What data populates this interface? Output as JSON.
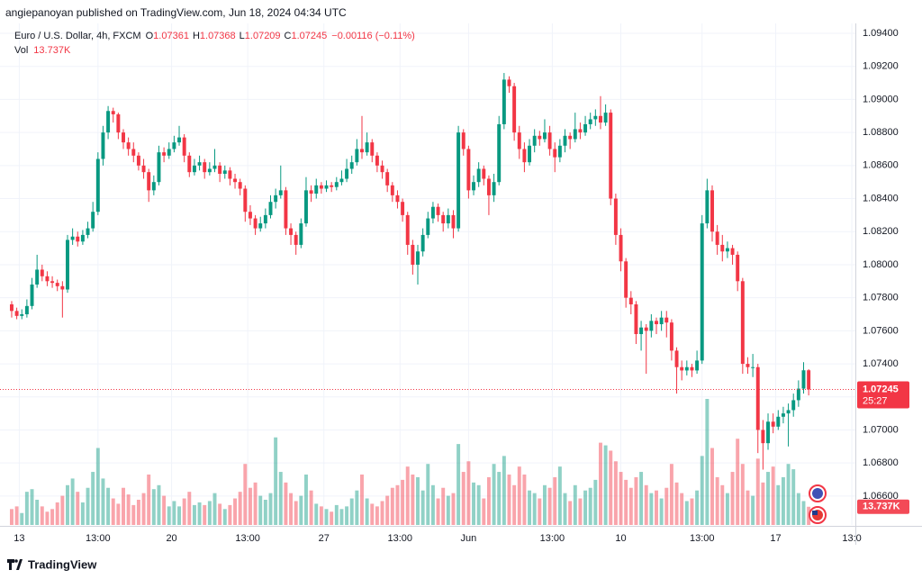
{
  "chart_data": {
    "type": "candlestick",
    "header": "angiepanoyan published on TradingView.com, Jun 18, 2024 04:34 UTC",
    "title": "Euro / U.S. Dollar, 4h, FXCM",
    "legend_labels": {
      "open": "O",
      "high": "H",
      "low": "L",
      "close": "C"
    },
    "change_label": "−0.00116 (−0.11%)",
    "volume_title": "Vol",
    "volume_label": "13.737K",
    "countdown": "25:27",
    "up_color": "#089981",
    "down_color": "#f23645",
    "grid": true,
    "ylim": [
      1.06425,
      1.0946
    ],
    "yticks": [
      {
        "value": 1.094,
        "label": "1.09400"
      },
      {
        "value": 1.092,
        "label": "1.09200"
      },
      {
        "value": 1.09,
        "label": "1.09000"
      },
      {
        "value": 1.088,
        "label": "1.08800"
      },
      {
        "value": 1.086,
        "label": "1.08600"
      },
      {
        "value": 1.084,
        "label": "1.08400"
      },
      {
        "value": 1.082,
        "label": "1.08200"
      },
      {
        "value": 1.08,
        "label": "1.08000"
      },
      {
        "value": 1.078,
        "label": "1.07800"
      },
      {
        "value": 1.076,
        "label": "1.07600"
      },
      {
        "value": 1.074,
        "label": "1.07400"
      },
      {
        "value": 1.072,
        "label": "1.07200"
      },
      {
        "value": 1.07,
        "label": "1.07000"
      },
      {
        "value": 1.068,
        "label": "1.06800"
      },
      {
        "value": 1.066,
        "label": "1.06600"
      }
    ],
    "xlim": [
      -2.3,
      166.2
    ],
    "xticks": [
      {
        "value": 1.5,
        "label": "13"
      },
      {
        "value": 17,
        "label": "13:00"
      },
      {
        "value": 31.5,
        "label": "20"
      },
      {
        "value": 46.5,
        "label": "13:00"
      },
      {
        "value": 61.5,
        "label": "27"
      },
      {
        "value": 76.5,
        "label": "13:00"
      },
      {
        "value": 90,
        "label": "Jun"
      },
      {
        "value": 106.5,
        "label": "13:00"
      },
      {
        "value": 120,
        "label": "10"
      },
      {
        "value": 136,
        "label": "13:00"
      },
      {
        "value": 150.5,
        "label": "17"
      },
      {
        "value": 165.5,
        "label": "13:0"
      }
    ],
    "open": [
      1.0776,
      1.0772,
      1.0769,
      1.077,
      1.0775,
      1.0788,
      1.0797,
      1.0793,
      1.079,
      1.0789,
      1.0787,
      1.0785,
      1.0815,
      1.0817,
      1.0814,
      1.0818,
      1.0822,
      1.0832,
      1.0864,
      1.088,
      1.0893,
      1.0891,
      1.088,
      1.0874,
      1.087,
      1.0866,
      1.086,
      1.0856,
      1.0845,
      1.085,
      1.0868,
      1.0866,
      1.087,
      1.0874,
      1.0877,
      1.0866,
      1.0856,
      1.086,
      1.0862,
      1.0856,
      1.0858,
      1.086,
      1.0855,
      1.0857,
      1.0852,
      1.085,
      1.0846,
      1.0832,
      1.0828,
      1.0822,
      1.0825,
      1.083,
      1.0838,
      1.0842,
      1.0845,
      1.0822,
      1.0818,
      1.0812,
      1.0825,
      1.0845,
      1.0843,
      1.0848,
      1.0846,
      1.0848,
      1.0847,
      1.085,
      1.0852,
      1.0858,
      1.0862,
      1.087,
      1.0868,
      1.0874,
      1.0866,
      1.086,
      1.0856,
      1.0848,
      1.0842,
      1.0838,
      1.083,
      1.0812,
      1.08,
      1.0808,
      1.0818,
      1.0828,
      1.0835,
      1.083,
      1.0825,
      1.083,
      1.0822,
      1.088,
      1.087,
      1.0845,
      1.085,
      1.0858,
      1.0852,
      1.0842,
      1.085,
      1.0885,
      1.0912,
      1.0908,
      1.088,
      1.087,
      1.0862,
      1.0872,
      1.0878,
      1.0876,
      1.088,
      1.087,
      1.0865,
      1.0872,
      1.0878,
      1.0876,
      1.0882,
      1.088,
      1.0885,
      1.0888,
      1.089,
      1.0886,
      1.0892,
      1.084,
      1.0818,
      1.0802,
      1.078,
      1.0776,
      1.0758,
      1.0762,
      1.076,
      1.0766,
      1.0764,
      1.0768,
      1.0765,
      1.0748,
      1.0738,
      1.0736,
      1.0738,
      1.0736,
      1.0742,
      1.0825,
      1.0845,
      1.082,
      1.0812,
      1.0808,
      1.081,
      1.0806,
      1.079,
      1.074,
      1.0738,
      1.0738,
      1.07,
      1.0692,
      1.0705,
      1.0702,
      1.0708,
      1.071,
      1.0712,
      1.0718,
      1.0725,
      1.07361
    ],
    "high": [
      1.0778,
      1.0774,
      1.0773,
      1.0779,
      1.0792,
      1.0806,
      1.08,
      1.0796,
      1.0793,
      1.0791,
      1.079,
      1.0818,
      1.0822,
      1.082,
      1.0821,
      1.0826,
      1.0838,
      1.0868,
      1.0884,
      1.0896,
      1.0895,
      1.0892,
      1.0882,
      1.0877,
      1.0874,
      1.0868,
      1.0864,
      1.0858,
      1.0854,
      1.0872,
      1.0871,
      1.0874,
      1.0878,
      1.0884,
      1.0879,
      1.0868,
      1.0864,
      1.0866,
      1.0864,
      1.0862,
      1.087,
      1.0862,
      1.086,
      1.0859,
      1.0855,
      1.0852,
      1.0848,
      1.0836,
      1.083,
      1.0829,
      1.0834,
      1.0842,
      1.0846,
      1.086,
      1.0847,
      1.0825,
      1.082,
      1.0828,
      1.0853,
      1.0848,
      1.0852,
      1.085,
      1.0851,
      1.085,
      1.0853,
      1.0857,
      1.0864,
      1.0866,
      1.0876,
      1.089,
      1.088,
      1.0876,
      1.0868,
      1.0863,
      1.0858,
      1.085,
      1.0845,
      1.084,
      1.0832,
      1.0815,
      1.0812,
      1.0822,
      1.0832,
      1.0838,
      1.0837,
      1.0832,
      1.0834,
      1.0833,
      1.0884,
      1.0882,
      1.0872,
      1.0854,
      1.0862,
      1.086,
      1.0854,
      1.0855,
      1.089,
      1.0916,
      1.0914,
      1.091,
      1.0884,
      1.0874,
      1.0876,
      1.0882,
      1.0881,
      1.0888,
      1.0884,
      1.0874,
      1.0876,
      1.0882,
      1.088,
      1.0892,
      1.0886,
      1.089,
      1.0892,
      1.0894,
      1.0902,
      1.0897,
      1.0894,
      1.0843,
      1.0822,
      1.0804,
      1.0784,
      1.0778,
      1.0766,
      1.0764,
      1.077,
      1.0768,
      1.0772,
      1.0772,
      1.0767,
      1.075,
      1.0742,
      1.0742,
      1.074,
      1.0748,
      1.083,
      1.0852,
      1.0848,
      1.0824,
      1.0818,
      1.0814,
      1.0812,
      1.0808,
      1.0792,
      1.0744,
      1.0746,
      1.074,
      1.0706,
      1.071,
      1.071,
      1.0712,
      1.0714,
      1.0716,
      1.0722,
      1.073,
      1.0741,
      1.07368
    ],
    "low": [
      1.0768,
      1.0767,
      1.0767,
      1.0768,
      1.0773,
      1.0786,
      1.079,
      1.0787,
      1.0786,
      1.0784,
      1.0768,
      1.0783,
      1.0812,
      1.0811,
      1.0812,
      1.0816,
      1.082,
      1.083,
      1.086,
      1.0876,
      1.0886,
      1.0876,
      1.087,
      1.0866,
      1.0862,
      1.0857,
      1.0852,
      1.0838,
      1.0842,
      1.0848,
      1.0862,
      1.0864,
      1.0868,
      1.0872,
      1.0862,
      1.0853,
      1.0854,
      1.0857,
      1.0852,
      1.0854,
      1.0856,
      1.085,
      1.0852,
      1.0848,
      1.0846,
      1.0842,
      1.0826,
      1.0824,
      1.0818,
      1.082,
      1.0822,
      1.0828,
      1.0834,
      1.084,
      1.0818,
      1.0812,
      1.0806,
      1.081,
      1.0823,
      1.0838,
      1.084,
      1.0843,
      1.0844,
      1.0844,
      1.0845,
      1.0848,
      1.085,
      1.0855,
      1.086,
      1.0864,
      1.0866,
      1.0862,
      1.0856,
      1.0852,
      1.0844,
      1.0838,
      1.0834,
      1.0826,
      1.0806,
      1.0794,
      1.0788,
      1.0805,
      1.0816,
      1.0825,
      1.0826,
      1.082,
      1.0822,
      1.0816,
      1.082,
      1.0866,
      1.084,
      1.0842,
      1.0847,
      1.0848,
      1.083,
      1.0838,
      1.0848,
      1.0882,
      1.0904,
      1.0875,
      1.0864,
      1.0856,
      1.086,
      1.0868,
      1.0872,
      1.0874,
      1.0866,
      1.0856,
      1.0862,
      1.0868,
      1.087,
      1.0874,
      1.0876,
      1.0878,
      1.0882,
      1.0884,
      1.0882,
      1.0884,
      1.0836,
      1.0812,
      1.0796,
      1.0774,
      1.077,
      1.0752,
      1.0748,
      1.0734,
      1.0756,
      1.0758,
      1.076,
      1.0756,
      1.0742,
      1.0722,
      1.073,
      1.0733,
      1.0732,
      1.0734,
      1.074,
      1.0822,
      1.0814,
      1.0806,
      1.0802,
      1.0804,
      1.08,
      1.0784,
      1.0734,
      1.0734,
      1.0732,
      1.0686,
      1.0676,
      1.0688,
      1.0698,
      1.07,
      1.0704,
      1.069,
      1.0708,
      1.0714,
      1.0722,
      1.07209
    ],
    "close": [
      1.0772,
      1.0769,
      1.077,
      1.0775,
      1.0788,
      1.0797,
      1.0793,
      1.079,
      1.0789,
      1.0787,
      1.0785,
      1.0815,
      1.0817,
      1.0814,
      1.0818,
      1.0822,
      1.0832,
      1.0864,
      1.088,
      1.0893,
      1.0891,
      1.088,
      1.0874,
      1.087,
      1.0866,
      1.086,
      1.0856,
      1.0845,
      1.085,
      1.0868,
      1.0866,
      1.087,
      1.0874,
      1.0877,
      1.0866,
      1.0856,
      1.086,
      1.0862,
      1.0856,
      1.0858,
      1.086,
      1.0855,
      1.0857,
      1.0852,
      1.085,
      1.0846,
      1.0832,
      1.0828,
      1.0822,
      1.0825,
      1.083,
      1.0838,
      1.0842,
      1.0845,
      1.0822,
      1.0818,
      1.0812,
      1.0825,
      1.0845,
      1.0843,
      1.0848,
      1.0846,
      1.0848,
      1.0847,
      1.085,
      1.0852,
      1.0858,
      1.0862,
      1.087,
      1.0868,
      1.0874,
      1.0866,
      1.086,
      1.0856,
      1.0848,
      1.0842,
      1.0838,
      1.083,
      1.0812,
      1.08,
      1.0808,
      1.0818,
      1.0828,
      1.0835,
      1.083,
      1.0825,
      1.083,
      1.0822,
      1.088,
      1.087,
      1.0845,
      1.085,
      1.0858,
      1.0852,
      1.0842,
      1.085,
      1.0885,
      1.0912,
      1.0908,
      1.088,
      1.087,
      1.0862,
      1.0872,
      1.0878,
      1.0876,
      1.088,
      1.087,
      1.0865,
      1.0872,
      1.0878,
      1.0876,
      1.0882,
      1.088,
      1.0885,
      1.0888,
      1.089,
      1.0886,
      1.0892,
      1.084,
      1.0818,
      1.0802,
      1.078,
      1.0776,
      1.0758,
      1.0762,
      1.076,
      1.0766,
      1.0764,
      1.0768,
      1.0765,
      1.0748,
      1.0738,
      1.0736,
      1.0738,
      1.0736,
      1.0742,
      1.0825,
      1.0845,
      1.082,
      1.0812,
      1.0808,
      1.081,
      1.0806,
      1.079,
      1.074,
      1.0738,
      1.0738,
      1.07,
      1.0692,
      1.0705,
      1.0702,
      1.0708,
      1.071,
      1.0712,
      1.0718,
      1.0725,
      1.07361,
      1.07245
    ],
    "volume": [
      12000,
      14000,
      9000,
      25000,
      27000,
      19000,
      14000,
      10000,
      12000,
      17000,
      22000,
      30000,
      35000,
      25000,
      17000,
      28000,
      40000,
      58000,
      35000,
      28000,
      20000,
      16000,
      28000,
      23000,
      15000,
      19000,
      24000,
      38000,
      27000,
      30000,
      22000,
      14000,
      18000,
      14000,
      20000,
      25000,
      15000,
      17000,
      15000,
      18000,
      24000,
      16000,
      12000,
      15000,
      20000,
      25000,
      46000,
      28000,
      32000,
      22000,
      19000,
      24000,
      66000,
      40000,
      32000,
      24000,
      18000,
      22000,
      38000,
      26000,
      16000,
      14000,
      12000,
      10000,
      15000,
      12000,
      14000,
      20000,
      26000,
      38000,
      20000,
      16000,
      14000,
      18000,
      22000,
      28000,
      30000,
      34000,
      44000,
      38000,
      36000,
      26000,
      46000,
      30000,
      20000,
      28000,
      22000,
      24000,
      61000,
      40000,
      48000,
      32000,
      30000,
      20000,
      36000,
      46000,
      40000,
      52000,
      38000,
      30000,
      44000,
      38000,
      26000,
      24000,
      20000,
      30000,
      28000,
      36000,
      44000,
      24000,
      18000,
      30000,
      20000,
      26000,
      28000,
      34000,
      62000,
      60000,
      56000,
      48000,
      40000,
      34000,
      28000,
      36000,
      40000,
      30000,
      24000,
      26000,
      20000,
      28000,
      46000,
      32000,
      24000,
      18000,
      20000,
      26000,
      52000,
      95000,
      58000,
      36000,
      30000,
      24000,
      40000,
      65000,
      46000,
      26000,
      22000,
      50000,
      32000,
      40000,
      44000,
      30000,
      36000,
      46000,
      42000,
      24000,
      18000,
      13737
    ]
  },
  "footer": {
    "brand": "TradingView"
  }
}
